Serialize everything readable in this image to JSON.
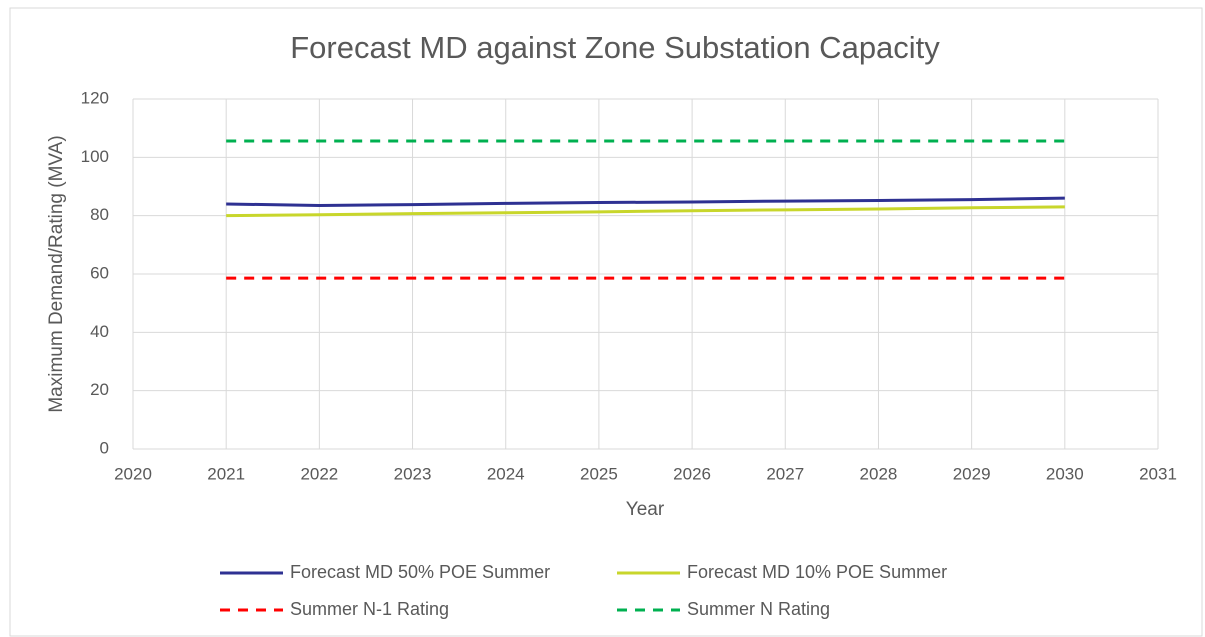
{
  "chart_data": {
    "type": "line",
    "title": "Forecast MD against Zone Substation Capacity",
    "x_label": "Year",
    "y_label": "Maximum Demand/Rating (MVA)",
    "x": [
      2021,
      2022,
      2023,
      2024,
      2025,
      2026,
      2027,
      2028,
      2029,
      2030
    ],
    "series": [
      {
        "name": "Forecast MD 50% POE Summer",
        "color": "#2e3192",
        "dash": false,
        "values": [
          84,
          83.5,
          83.8,
          84.2,
          84.5,
          84.7,
          85,
          85.2,
          85.5,
          86
        ]
      },
      {
        "name": "Forecast MD 10% POE Summer",
        "color": "#c8d62b",
        "dash": false,
        "values": [
          80,
          80.3,
          80.7,
          81,
          81.3,
          81.7,
          82,
          82.3,
          82.7,
          83
        ]
      },
      {
        "name": "Summer N-1 Rating",
        "color": "#ff0000",
        "dash": true,
        "values": [
          58.6,
          58.6,
          58.6,
          58.6,
          58.6,
          58.6,
          58.6,
          58.6,
          58.6,
          58.6
        ]
      },
      {
        "name": "Summer N Rating",
        "color": "#00b050",
        "dash": true,
        "values": [
          105.6,
          105.6,
          105.6,
          105.6,
          105.6,
          105.6,
          105.6,
          105.6,
          105.6,
          105.6
        ]
      }
    ],
    "xlim": [
      2020,
      2031
    ],
    "xticks": [
      2020,
      2021,
      2022,
      2023,
      2024,
      2025,
      2026,
      2027,
      2028,
      2029,
      2030,
      2031
    ],
    "ylim": [
      0,
      120
    ],
    "yticks": [
      0,
      20,
      40,
      60,
      80,
      100,
      120
    ],
    "grid": true,
    "legend": "bottom"
  }
}
